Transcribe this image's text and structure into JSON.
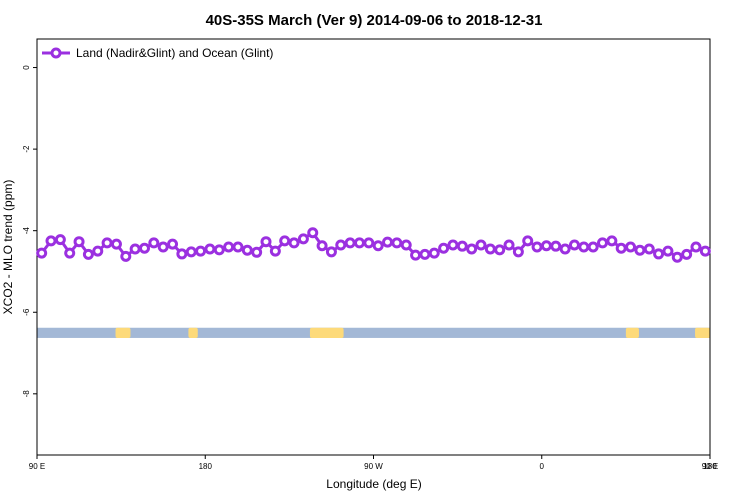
{
  "chart_data": {
    "type": "line",
    "title": "40S-35S March (Ver 9)   2014-09-06 to 2018-12-31",
    "xlabel": "Longitude (deg E)",
    "ylabel": "XCO2 - MLO trend (ppm)",
    "xlim": [
      90,
      450
    ],
    "ylim": [
      -9.5,
      0.7
    ],
    "x_ticks": [
      {
        "value": 90,
        "label": "90 E"
      },
      {
        "value": 180,
        "label": "180"
      },
      {
        "value": 270,
        "label": "90 W"
      },
      {
        "value": 360,
        "label": "0"
      },
      {
        "value": 450,
        "label": "90 E"
      },
      {
        "value": 540,
        "label": "180"
      }
    ],
    "y_ticks": [
      {
        "value": 0,
        "label": "0"
      },
      {
        "value": -2,
        "label": "-2"
      },
      {
        "value": -4,
        "label": "-4"
      },
      {
        "value": -6,
        "label": "-6"
      },
      {
        "value": -8,
        "label": "-8"
      }
    ],
    "legend": {
      "position": "top-left"
    },
    "band": {
      "y": [
        -6.63,
        -6.38
      ],
      "ocean_color": "#a3b8d6",
      "land_color": "#fdda7a"
    },
    "land_segments": [
      [
        132,
        140
      ],
      [
        171,
        176
      ],
      [
        236,
        254
      ],
      [
        405,
        412
      ],
      [
        442,
        450
      ]
    ],
    "series": [
      {
        "name": "Land (Nadir&Glint) and Ocean (Glint)",
        "color": "#9b30e0",
        "x": [
          92.5,
          97.5,
          102.5,
          107.5,
          112.5,
          117.5,
          122.5,
          127.5,
          132.5,
          137.5,
          142.5,
          147.5,
          152.5,
          157.5,
          162.5,
          167.5,
          172.5,
          177.5,
          182.5,
          187.5,
          192.5,
          197.5,
          202.5,
          207.5,
          212.5,
          217.5,
          222.5,
          227.5,
          232.5,
          237.5,
          242.5,
          247.5,
          252.5,
          257.5,
          262.5,
          267.5,
          272.5,
          277.5,
          282.5,
          287.5,
          292.5,
          297.5,
          302.5,
          307.5,
          312.5,
          317.5,
          322.5,
          327.5,
          332.5,
          337.5,
          342.5,
          347.5,
          352.5,
          357.5,
          362.5,
          367.5,
          372.5,
          377.5,
          382.5,
          387.5,
          392.5,
          397.5,
          402.5,
          407.5,
          412.5,
          417.5,
          422.5,
          427.5,
          432.5,
          437.5,
          442.5,
          447.5
        ],
        "y": [
          -4.55,
          -4.25,
          -4.22,
          -4.55,
          -4.27,
          -4.58,
          -4.5,
          -4.3,
          -4.33,
          -4.63,
          -4.45,
          -4.43,
          -4.3,
          -4.4,
          -4.33,
          -4.57,
          -4.52,
          -4.5,
          -4.45,
          -4.47,
          -4.4,
          -4.4,
          -4.48,
          -4.53,
          -4.27,
          -4.5,
          -4.25,
          -4.3,
          -4.2,
          -4.05,
          -4.37,
          -4.52,
          -4.35,
          -4.3,
          -4.3,
          -4.3,
          -4.37,
          -4.28,
          -4.3,
          -4.35,
          -4.6,
          -4.58,
          -4.55,
          -4.43,
          -4.35,
          -4.38,
          -4.45,
          -4.35,
          -4.45,
          -4.47,
          -4.35,
          -4.52,
          -4.25,
          -4.4,
          -4.37,
          -4.38,
          -4.45,
          -4.35,
          -4.4,
          -4.4,
          -4.3,
          -4.25,
          -4.43,
          -4.4,
          -4.48,
          -4.45,
          -4.57,
          -4.5,
          -4.65,
          -4.58,
          -4.4,
          -4.5
        ]
      }
    ]
  }
}
